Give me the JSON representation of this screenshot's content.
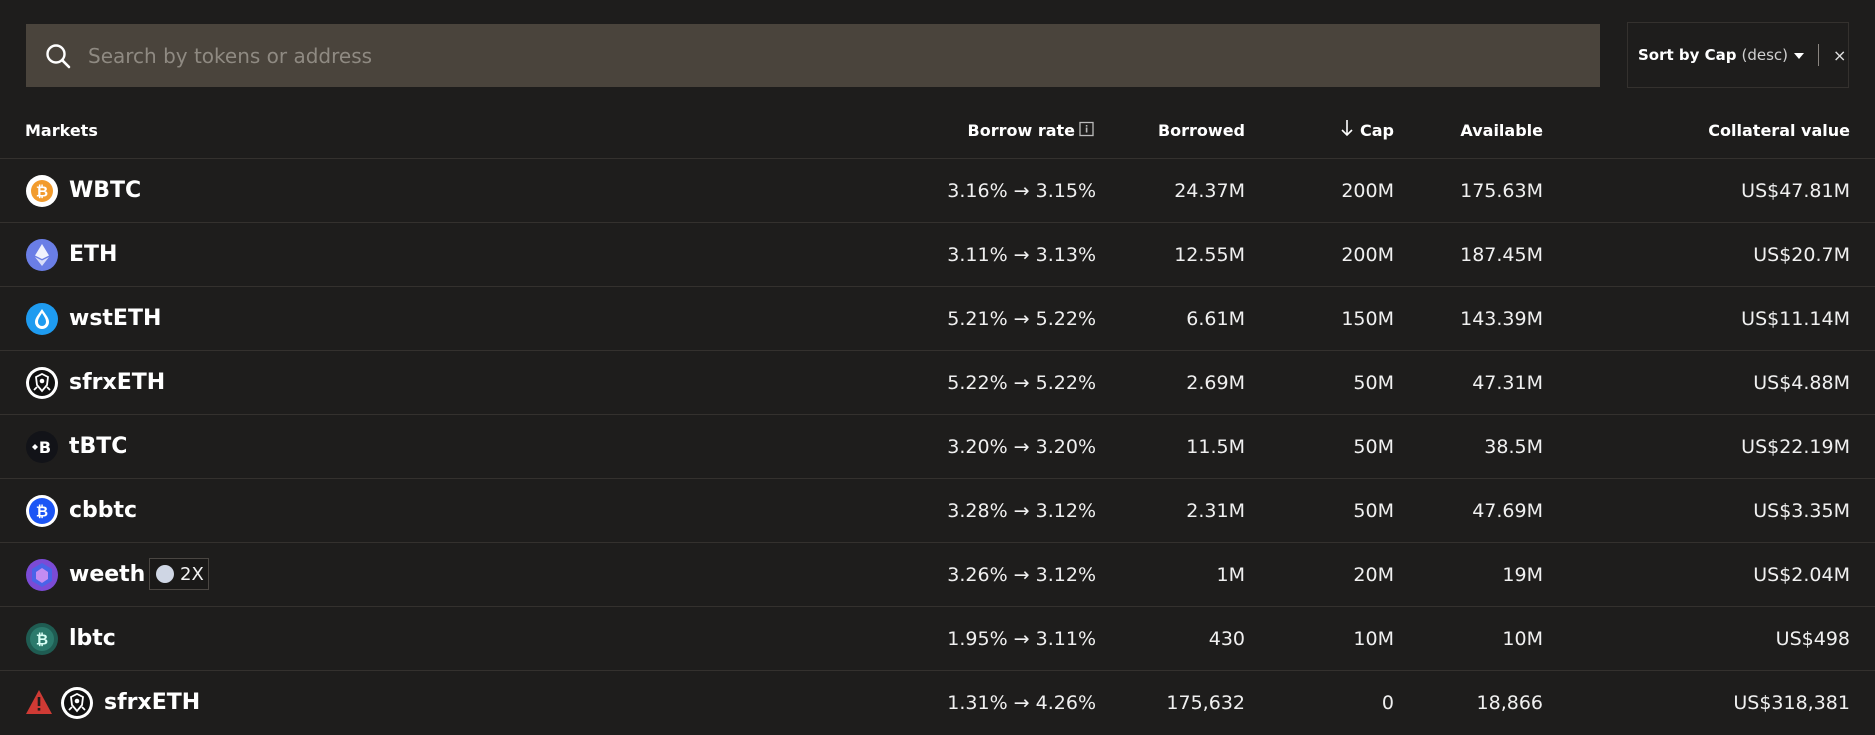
{
  "search": {
    "placeholder": "Search by tokens or address"
  },
  "sort": {
    "label": "Sort by Cap",
    "direction": "(desc)",
    "close": "×"
  },
  "columns": {
    "markets": "Markets",
    "borrow_rate": "Borrow rate",
    "borrowed": "Borrowed",
    "cap": "Cap",
    "available": "Available",
    "collateral": "Collateral value"
  },
  "rows": [
    {
      "name": "WBTC",
      "icon": "wbtc-icon",
      "rate": "3.16% → 3.15%",
      "borrowed": "24.37M",
      "cap": "200M",
      "available": "175.63M",
      "collateral": "US$47.81M"
    },
    {
      "name": "ETH",
      "icon": "eth-icon",
      "rate": "3.11% → 3.13%",
      "borrowed": "12.55M",
      "cap": "200M",
      "available": "187.45M",
      "collateral": "US$20.7M"
    },
    {
      "name": "wstETH",
      "icon": "wsteth-icon",
      "rate": "5.21% → 5.22%",
      "borrowed": "6.61M",
      "cap": "150M",
      "available": "143.39M",
      "collateral": "US$11.14M"
    },
    {
      "name": "sfrxETH",
      "icon": "sfrxeth-icon",
      "rate": "5.22% → 5.22%",
      "borrowed": "2.69M",
      "cap": "50M",
      "available": "47.31M",
      "collateral": "US$4.88M"
    },
    {
      "name": "tBTC",
      "icon": "tbtc-icon",
      "rate": "3.20% → 3.20%",
      "borrowed": "11.5M",
      "cap": "50M",
      "available": "38.5M",
      "collateral": "US$22.19M"
    },
    {
      "name": "cbbtc",
      "icon": "cbbtc-icon",
      "rate": "3.28% → 3.12%",
      "borrowed": "2.31M",
      "cap": "50M",
      "available": "47.69M",
      "collateral": "US$3.35M"
    },
    {
      "name": "weeth",
      "icon": "weeth-icon",
      "badge": "2X",
      "rate": "3.26% → 3.12%",
      "borrowed": "1M",
      "cap": "20M",
      "available": "19M",
      "collateral": "US$2.04M"
    },
    {
      "name": "lbtc",
      "icon": "lbtc-icon",
      "rate": "1.95% → 3.11%",
      "borrowed": "430",
      "cap": "10M",
      "available": "10M",
      "collateral": "US$498"
    },
    {
      "name": "sfrxETH",
      "icon": "sfrxeth-icon",
      "warning": true,
      "rate": "1.31% → 4.26%",
      "borrowed": "175,632",
      "cap": "0",
      "available": "18,866",
      "collateral": "US$318,381"
    }
  ]
}
